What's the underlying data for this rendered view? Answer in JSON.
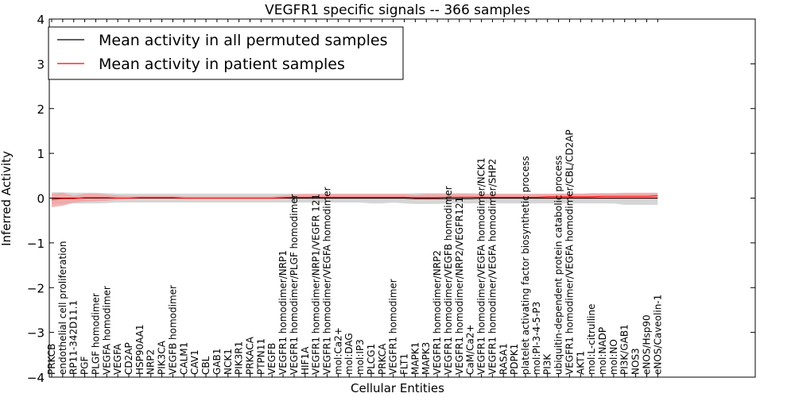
{
  "chart_data": {
    "type": "line",
    "title": "VEGFR1 specific signals -- 366 samples",
    "xlabel": "Cellular Entities",
    "ylabel": "Inferred Activity",
    "ylim": [
      -4,
      4
    ],
    "yticks": [
      4,
      3,
      2,
      1,
      0,
      -1,
      -2,
      -3,
      -4
    ],
    "ytick_labels": [
      "4",
      "3",
      "2",
      "1",
      "0",
      "−1",
      "−2",
      "−3",
      "−4"
    ],
    "grid": false,
    "legend_position": "top-left",
    "categories": [
      "PRKCB",
      "endothelial cell proliferation",
      "RP11-342D11.1",
      "PGF",
      "PLGF homodimer",
      "VEGFA homodimer",
      "VEGFA",
      "CD2AP",
      "HSP90AA1",
      "NRP2",
      "PIK3CA",
      "VEGFB homodimer",
      "CALM1",
      "CAV1",
      "CBL",
      "GAB1",
      "NCK1",
      "PIK3R1",
      "PRKACA",
      "PTPN11",
      "VEGFB",
      "VEGFR1 homodimer/NRP1",
      "VEGFR1 homodimer/PLGF homodimer",
      "HIF1A",
      "VEGFR1 homodimer/NRP1/VEGFR 121",
      "VEGFR1 homodimer/VEGFA homodimer",
      "mol:Ca2+",
      "mol:DAG",
      "mol:IP3",
      "PLCG1",
      "PRKCA",
      "VEGFR1 homodimer",
      "FLT1",
      "MAPK1",
      "MAPK3",
      "VEGFR1 homodimer/NRP2",
      "VEGFR1 homodimer/VEGFB homodimer",
      "VEGFR1 homodimer/NRP2/VEGFR121",
      "CaM/Ca2+",
      "VEGFR1 homodimer/VEGFA homodimer/NCK1",
      "VEGFR1 homodimer/VEGFA homodimer/SHP2",
      "RASA1",
      "PDPK1",
      "platelet activating factor biosynthetic process",
      "mol:PI-3-4-5-P3",
      "PI3K",
      "ubiquitin-dependent protein catabolic process",
      "VEGFR1 homodimer/VEGFA homodimer/CBL/CD2AP",
      "AKT1",
      "mol:L-citrulline",
      "mol:NADP",
      "mol:NO",
      "PI3K/GAB1",
      "NOS3",
      "eNOS/Hsp90",
      "eNOS/Caveolin-1"
    ],
    "series": [
      {
        "name": "Mean activity in all permuted samples",
        "color": "#000000",
        "band_color": "#c8c8c8",
        "values": [
          0,
          0,
          0,
          0,
          0,
          0,
          0,
          0,
          0,
          0,
          0,
          0,
          0,
          0,
          0,
          0,
          0,
          0,
          0,
          0,
          0,
          0,
          0,
          0,
          0,
          0,
          0,
          0,
          0,
          0,
          0,
          0,
          0,
          -0.01,
          -0.01,
          -0.01,
          -0.01,
          -0.01,
          -0.01,
          0,
          0,
          0,
          0,
          0,
          0,
          0,
          0,
          0,
          0,
          0,
          0,
          0,
          0,
          0,
          0,
          0
        ],
        "band_upper": [
          0.13,
          0.13,
          0.12,
          0.12,
          0.12,
          0.11,
          0.1,
          0.1,
          0.1,
          0.1,
          0.1,
          0.1,
          0.1,
          0.1,
          0.1,
          0.1,
          0.1,
          0.1,
          0.1,
          0.1,
          0.1,
          0.1,
          0.1,
          0.1,
          0.1,
          0.1,
          0.1,
          0.1,
          0.1,
          0.1,
          0.1,
          0.1,
          0.1,
          0.11,
          0.11,
          0.11,
          0.11,
          0.11,
          0.11,
          0.1,
          0.1,
          0.1,
          0.1,
          0.1,
          0.1,
          0.1,
          0.1,
          0.1,
          0.1,
          0.1,
          0.1,
          0.1,
          0.1,
          0.1,
          0.1,
          0.1
        ],
        "band_lower": [
          -0.13,
          -0.13,
          -0.12,
          -0.12,
          -0.12,
          -0.11,
          -0.1,
          -0.1,
          -0.1,
          -0.1,
          -0.1,
          -0.1,
          -0.1,
          -0.1,
          -0.1,
          -0.1,
          -0.1,
          -0.1,
          -0.1,
          -0.1,
          -0.1,
          -0.1,
          -0.1,
          -0.1,
          -0.1,
          -0.1,
          -0.1,
          -0.1,
          -0.1,
          -0.12,
          -0.12,
          -0.1,
          -0.12,
          -0.13,
          -0.13,
          -0.13,
          -0.12,
          -0.12,
          -0.12,
          -0.12,
          -0.12,
          -0.12,
          -0.12,
          -0.12,
          -0.12,
          -0.12,
          -0.12,
          -0.12,
          -0.12,
          -0.12,
          -0.12,
          -0.12,
          -0.15,
          -0.15,
          -0.15,
          -0.15
        ]
      },
      {
        "name": "Mean activity in patient samples",
        "color": "#ff0000",
        "band_color": "#f4a0a0",
        "values": [
          -0.03,
          -0.01,
          -0.01,
          0.01,
          0.01,
          0.01,
          0,
          0,
          0.01,
          0.01,
          0.01,
          0.01,
          0,
          0,
          0,
          0,
          0,
          0,
          0,
          0,
          0,
          0.01,
          0.02,
          0.02,
          0.02,
          0.02,
          0.02,
          0.02,
          0.02,
          0.02,
          0.02,
          0.02,
          0.02,
          0.01,
          0.01,
          0.01,
          0.02,
          0.02,
          0.02,
          0.02,
          0.02,
          0.02,
          0.02,
          0.02,
          0.02,
          0.03,
          0.03,
          0.03,
          0.03,
          0.03,
          0.04,
          0.04,
          0.04,
          0.04,
          0.04,
          0.05
        ],
        "band_upper": [
          0.1,
          0.12,
          0.05,
          0.1,
          0.1,
          0.08,
          0.06,
          0.05,
          0.05,
          0.05,
          0.05,
          0.05,
          0.04,
          0.04,
          0.04,
          0.04,
          0.04,
          0.04,
          0.04,
          0.04,
          0.04,
          0.06,
          0.08,
          0.09,
          0.09,
          0.09,
          0.09,
          0.09,
          0.09,
          0.09,
          0.09,
          0.09,
          0.09,
          0.07,
          0.09,
          0.09,
          0.09,
          0.09,
          0.09,
          0.09,
          0.09,
          0.09,
          0.09,
          0.09,
          0.09,
          0.09,
          0.1,
          0.1,
          0.1,
          0.11,
          0.11,
          0.11,
          0.12,
          0.12,
          0.12,
          0.12
        ],
        "band_lower": [
          -0.2,
          -0.17,
          -0.1,
          -0.08,
          -0.07,
          -0.06,
          -0.03,
          -0.02,
          -0.02,
          -0.02,
          -0.02,
          -0.02,
          -0.02,
          -0.02,
          -0.02,
          -0.02,
          -0.02,
          -0.02,
          -0.02,
          -0.02,
          -0.02,
          -0.02,
          -0.03,
          -0.03,
          -0.03,
          -0.03,
          -0.03,
          -0.03,
          -0.03,
          -0.03,
          -0.03,
          -0.03,
          -0.03,
          -0.03,
          -0.03,
          -0.03,
          -0.03,
          -0.03,
          -0.03,
          -0.03,
          -0.03,
          -0.03,
          -0.03,
          -0.03,
          -0.03,
          -0.03,
          -0.03,
          -0.03,
          -0.03,
          -0.03,
          -0.03,
          -0.03,
          -0.03,
          -0.03,
          -0.03,
          -0.03
        ]
      }
    ]
  }
}
